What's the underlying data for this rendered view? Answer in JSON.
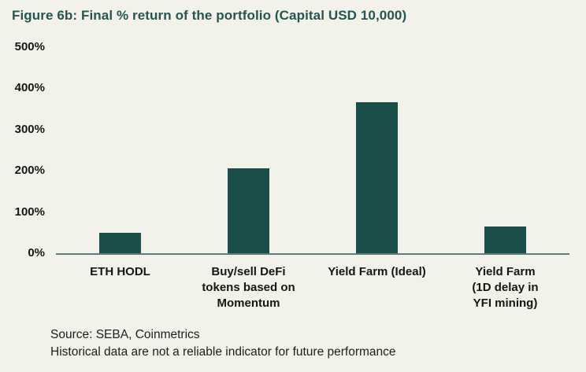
{
  "title": "Figure 6b: Final % return of the portfolio (Capital USD 10,000)",
  "source": {
    "line1": "Source: SEBA, Coinmetrics",
    "line2": "Historical data are not a reliable indicator for future performance"
  },
  "colors": {
    "background": "#f2f1ea",
    "bar": "#1a4e48",
    "title": "#24554f",
    "axis_line": "#5e7e79",
    "text": "#161616"
  },
  "chart_data": {
    "type": "bar",
    "title": "Figure 6b: Final % return of the portfolio (Capital USD 10,000)",
    "categories": [
      "ETH HODL",
      "Buy/sell DeFi tokens based on Momentum",
      "Yield Farm (Ideal)",
      "Yield Farm (1D delay in YFI mining)"
    ],
    "category_lines": [
      [
        "ETH HODL"
      ],
      [
        "Buy/sell DeFi",
        "tokens based on",
        "Momentum"
      ],
      [
        "Yield Farm (Ideal)"
      ],
      [
        "Yield Farm",
        "(1D delay in",
        "YFI mining)"
      ]
    ],
    "values": [
      50,
      205,
      365,
      65
    ],
    "unit": "%",
    "xlabel": "",
    "ylabel": "",
    "ylim": [
      0,
      500
    ],
    "yticks": [
      0,
      100,
      200,
      300,
      400,
      500
    ],
    "ytick_labels": [
      "0%",
      "100%",
      "200%",
      "300%",
      "400%",
      "500%"
    ],
    "grid": false,
    "legend": false,
    "bar_color": "#1a4e48",
    "annotations": []
  }
}
